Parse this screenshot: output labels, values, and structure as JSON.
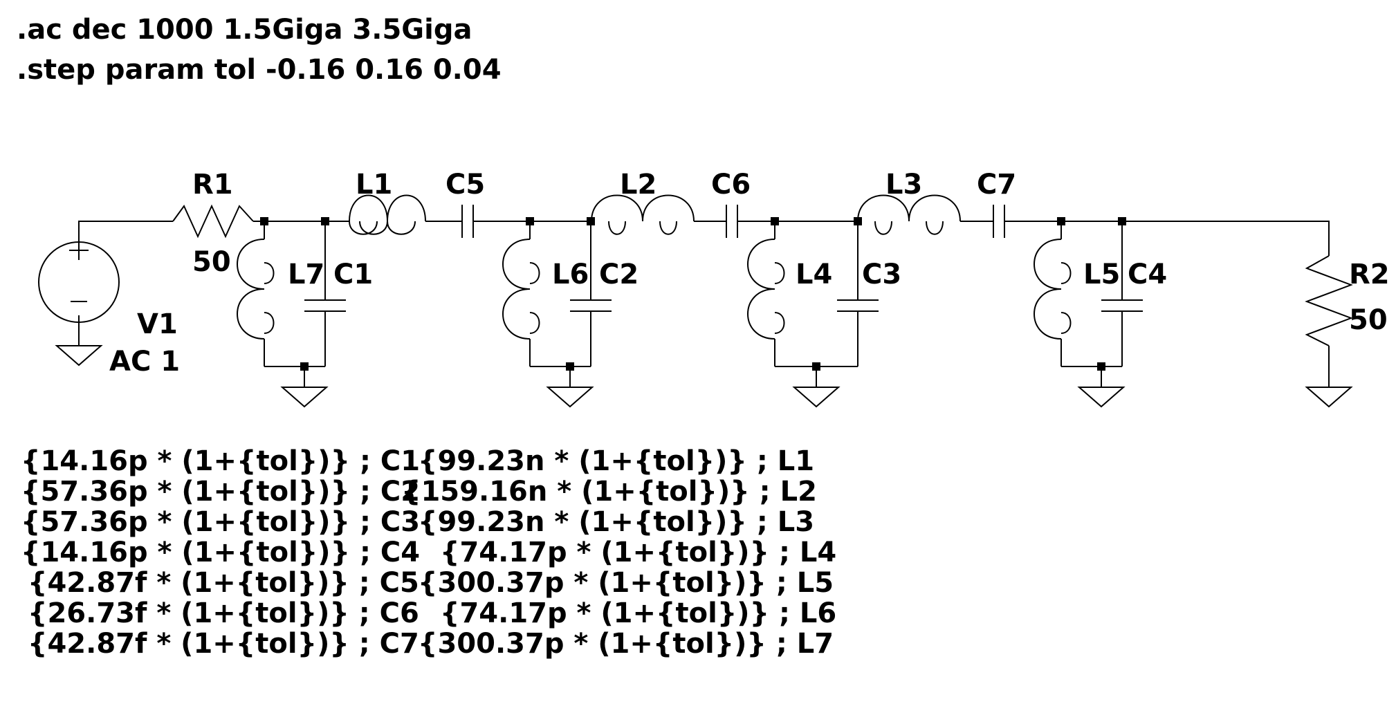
{
  "directives": [
    ".ac dec 1000 1.5Giga 3.5Giga",
    ".step param tol -0.16 0.16 0.04"
  ],
  "components": {
    "V1": {
      "name": "V1",
      "value": "AC 1"
    },
    "R1": {
      "name": "R1",
      "value": "50"
    },
    "R2": {
      "name": "R2",
      "value": "50"
    },
    "L1": {
      "name": "L1"
    },
    "L2": {
      "name": "L2"
    },
    "L3": {
      "name": "L3"
    },
    "L4": {
      "name": "L4"
    },
    "L5": {
      "name": "L5"
    },
    "L6": {
      "name": "L6"
    },
    "L7": {
      "name": "L7"
    },
    "C1": {
      "name": "C1"
    },
    "C2": {
      "name": "C2"
    },
    "C3": {
      "name": "C3"
    },
    "C4": {
      "name": "C4"
    },
    "C5": {
      "name": "C5"
    },
    "C6": {
      "name": "C6"
    },
    "C7": {
      "name": "C7"
    }
  },
  "expressions": {
    "capacitors": [
      "{14.16p * (1+{tol})} ; C1",
      "{57.36p * (1+{tol})} ; C2",
      "{57.36p * (1+{tol})} ; C3",
      "{14.16p * (1+{tol})} ; C4",
      "{42.87f * (1+{tol})} ; C5",
      "{26.73f * (1+{tol})} ; C6",
      "{42.87f * (1+{tol})} ; C7"
    ],
    "inductors": [
      "{99.23n * (1+{tol})} ; L1",
      "{159.16n * (1+{tol})} ; L2",
      "{99.23n * (1+{tol})} ; L3",
      "{74.17p * (1+{tol})} ; L4",
      "{300.37p * (1+{tol})} ; L5",
      "{74.17p * (1+{tol})} ; L6",
      "{300.37p * (1+{tol})} ; L7"
    ]
  }
}
